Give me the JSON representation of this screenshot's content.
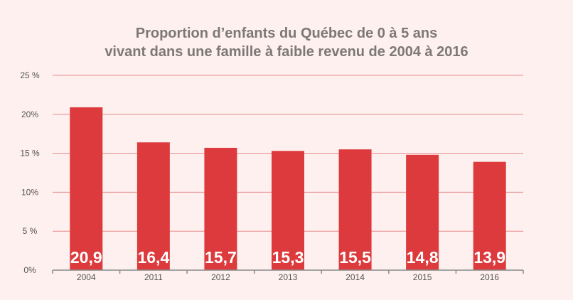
{
  "chart_data": {
    "type": "bar",
    "title_lines": [
      "Proportion d’enfants du Québec de 0 à 5 ans",
      "vivant dans une famille à faible revenu de 2004 à 2016"
    ],
    "categories": [
      "2004",
      "2011",
      "2012",
      "2013",
      "2014",
      "2015",
      "2016"
    ],
    "values": [
      20.9,
      16.4,
      15.7,
      15.3,
      15.5,
      14.8,
      13.9
    ],
    "value_labels": [
      "20,9",
      "16,4",
      "15,7",
      "15,3",
      "15,5",
      "14,8",
      "13,9"
    ],
    "y_ticks": [
      0,
      5,
      10,
      15,
      20,
      25
    ],
    "y_tick_labels": [
      "0%",
      "5 %",
      "10%",
      "15 %",
      "20%",
      "25 %"
    ],
    "ylim": [
      0,
      25
    ],
    "xlabel": "",
    "ylabel": "",
    "grid": true,
    "colors": {
      "bar": "#dc3a3c",
      "grid": "#e88a8a",
      "axis": "#8a8a8a",
      "tick_label": "#555555",
      "value_label": "#ffffff",
      "title": "#7d7877",
      "background": "#fdf0ee"
    }
  }
}
